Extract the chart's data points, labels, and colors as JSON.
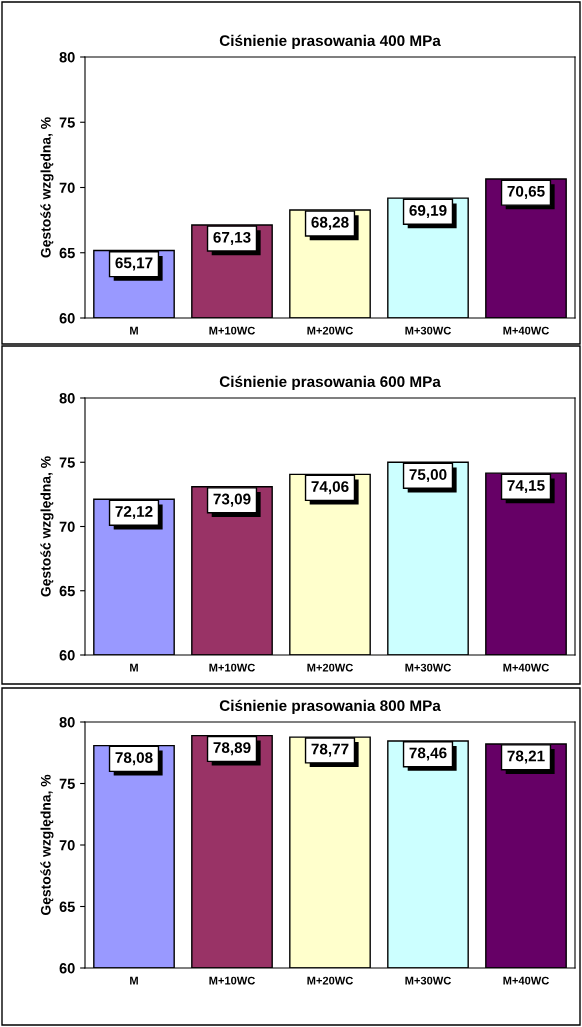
{
  "chart_data": [
    {
      "type": "bar",
      "title": "Ciśnienie prasowania 400 MPa",
      "ylabel": "Gęstość względna, %",
      "categories": [
        "M",
        "M+10WC",
        "M+20WC",
        "M+30WC",
        "M+40WC"
      ],
      "values": [
        65.17,
        67.13,
        68.28,
        69.19,
        70.65
      ],
      "value_labels": [
        "65,17",
        "67,13",
        "68,28",
        "69,19",
        "70,65"
      ],
      "colors": [
        "#9999ff",
        "#993366",
        "#ffffcc",
        "#ccffff",
        "#660066"
      ],
      "ylim": [
        60,
        80
      ],
      "yticks": [
        60,
        65,
        70,
        75,
        80
      ],
      "grid": false,
      "legend": false
    },
    {
      "type": "bar",
      "title": "Ciśnienie prasowania 600 MPa",
      "ylabel": "Gęstość względna, %",
      "categories": [
        "M",
        "M+10WC",
        "M+20WC",
        "M+30WC",
        "M+40WC"
      ],
      "values": [
        72.12,
        73.09,
        74.06,
        75.0,
        74.15
      ],
      "value_labels": [
        "72,12",
        "73,09",
        "74,06",
        "75,00",
        "74,15"
      ],
      "colors": [
        "#9999ff",
        "#993366",
        "#ffffcc",
        "#ccffff",
        "#660066"
      ],
      "ylim": [
        60,
        80
      ],
      "yticks": [
        60,
        65,
        70,
        75,
        80
      ],
      "grid": false,
      "legend": false
    },
    {
      "type": "bar",
      "title": "Ciśnienie prasowania 800 MPa",
      "ylabel": "Gęstość względna, %",
      "categories": [
        "M",
        "M+10WC",
        "M+20WC",
        "M+30WC",
        "M+40WC"
      ],
      "values": [
        78.08,
        78.89,
        78.77,
        78.46,
        78.21
      ],
      "value_labels": [
        "78,08",
        "78,89",
        "78,77",
        "78,46",
        "78,21"
      ],
      "colors": [
        "#9999ff",
        "#993366",
        "#ffffcc",
        "#ccffff",
        "#660066"
      ],
      "ylim": [
        60,
        80
      ],
      "yticks": [
        60,
        65,
        70,
        75,
        80
      ],
      "grid": false,
      "legend": false
    }
  ]
}
